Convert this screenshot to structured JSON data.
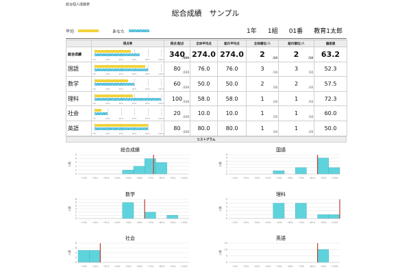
{
  "doc_label": "総合個人成績表",
  "title": "総合成績　サンプル",
  "legend": {
    "avg_label": "平均",
    "you_label": "あなた",
    "avg_color": "#f2d23a",
    "you_color": "#43b9d8"
  },
  "student": {
    "grade": "1年",
    "class": "1組",
    "number": "01番",
    "name": "教育1太郎"
  },
  "table": {
    "headers": [
      "",
      "得点率",
      "得点/配点",
      "全体平均点",
      "組の平均点",
      "全体順位/人",
      "組の順位/人",
      "偏差値"
    ],
    "ticks": [
      "0%",
      "20%",
      "40%",
      "60%",
      "80%",
      "100%"
    ],
    "rows": [
      {
        "subject": "総合成績",
        "avg_pct": 54.8,
        "you_pct": 68,
        "score": "340",
        "max": "/500",
        "all_avg": "274.0",
        "class_avg": "274.0",
        "rank": "2",
        "rank_of": "/10",
        "class_rank": "2",
        "class_rank_of": "/10",
        "dev": "63.2"
      },
      {
        "subject": "国語",
        "avg_pct": 76,
        "you_pct": 80,
        "score": "80",
        "max": "/100",
        "all_avg": "76.0",
        "class_avg": "76.0",
        "rank": "3",
        "rank_of": "/10",
        "class_rank": "3",
        "class_rank_of": "/10",
        "dev": "52.3"
      },
      {
        "subject": "数学",
        "avg_pct": 50,
        "you_pct": 60,
        "score": "60",
        "max": "/100",
        "all_avg": "50.0",
        "class_avg": "50.0",
        "rank": "2",
        "rank_of": "/10",
        "class_rank": "2",
        "class_rank_of": "/10",
        "dev": "57.5"
      },
      {
        "subject": "理科",
        "avg_pct": 58,
        "you_pct": 100,
        "score": "100",
        "max": "/100",
        "all_avg": "58.0",
        "class_avg": "58.0",
        "rank": "1",
        "rank_of": "/10",
        "class_rank": "1",
        "class_rank_of": "/10",
        "dev": "72.3"
      },
      {
        "subject": "社会",
        "avg_pct": 10,
        "you_pct": 20,
        "score": "20",
        "max": "/100",
        "all_avg": "10.0",
        "class_avg": "10.0",
        "rank": "1",
        "rank_of": "/10",
        "class_rank": "1",
        "class_rank_of": "/10",
        "dev": "60.0"
      },
      {
        "subject": "英語",
        "avg_pct": 80,
        "you_pct": 80,
        "score": "80",
        "max": "/100",
        "all_avg": "80.0",
        "class_avg": "80.0",
        "rank": "1",
        "rank_of": "/10",
        "class_rank": "1",
        "class_rank_of": "/10",
        "dev": "50.0"
      }
    ]
  },
  "histogram_header": "ヒストグラム",
  "chart_data": [
    {
      "type": "bar",
      "title": "総合成績",
      "ylabel": "人数",
      "categories": [
        "~10%",
        "~20%",
        "~30%",
        "~40%",
        "~50%",
        "~60%",
        "~70%",
        "~80%",
        "~90%",
        "~100%"
      ],
      "values": [
        0,
        0,
        0,
        0,
        1,
        2,
        4,
        3,
        0,
        0
      ],
      "ylim": [
        0,
        5
      ],
      "yticks": [
        0,
        1,
        2,
        3,
        4,
        5
      ],
      "marker_pct": 68,
      "bar_color": "#5fd3dc",
      "marker_color": "#c0392b"
    },
    {
      "type": "bar",
      "title": "国語",
      "ylabel": "人数",
      "categories": [
        "~10%",
        "~20%",
        "~30%",
        "~40%",
        "~50%",
        "~60%",
        "~70%",
        "~80%",
        "~90%",
        "~100%"
      ],
      "values": [
        0,
        0,
        0,
        0,
        1,
        0,
        2,
        0,
        5,
        2
      ],
      "ylim": [
        0,
        6
      ],
      "yticks": [
        0,
        1,
        2,
        3,
        4,
        5,
        6
      ],
      "marker_pct": 80,
      "bar_color": "#5fd3dc",
      "marker_color": "#c0392b"
    },
    {
      "type": "bar",
      "title": "数学",
      "ylabel": "人数",
      "categories": [
        "~10%",
        "~20%",
        "~30%",
        "~40%",
        "~50%",
        "~60%",
        "~70%",
        "~80%",
        "~90%",
        "~100%"
      ],
      "values": [
        0,
        0,
        0,
        0,
        5,
        0,
        2,
        0,
        1,
        0
      ],
      "ylim": [
        0,
        6
      ],
      "yticks": [
        0,
        1,
        2,
        3,
        4,
        5,
        6
      ],
      "marker_pct": 60,
      "bar_color": "#5fd3dc",
      "marker_color": "#c0392b"
    },
    {
      "type": "bar",
      "title": "理科",
      "ylabel": "人数",
      "categories": [
        "~10%",
        "~20%",
        "~30%",
        "~40%",
        "~50%",
        "~60%",
        "~70%",
        "~80%",
        "~90%",
        "~100%"
      ],
      "values": [
        0,
        0,
        0,
        0,
        4,
        0,
        4,
        0,
        1,
        1
      ],
      "ylim": [
        0,
        5
      ],
      "yticks": [
        0,
        1,
        2,
        3,
        4,
        5
      ],
      "marker_pct": 100,
      "bar_color": "#5fd3dc",
      "marker_color": "#c0392b"
    },
    {
      "type": "bar",
      "title": "社会",
      "ylabel": "人数",
      "categories": [
        "~10%",
        "~20%",
        "~30%",
        "~40%",
        "~50%",
        "~60%",
        "~70%",
        "~80%",
        "~90%",
        "~100%"
      ],
      "values": [
        5,
        5,
        0,
        0,
        0,
        0,
        0,
        0,
        0,
        0
      ],
      "ylim": [
        0,
        8
      ],
      "yticks": [
        0,
        2,
        4,
        6,
        8
      ],
      "marker_pct": 20,
      "bar_color": "#5fd3dc",
      "marker_color": "#c0392b"
    },
    {
      "type": "bar",
      "title": "英語",
      "ylabel": "人数",
      "categories": [
        "~10%",
        "~20%",
        "~30%",
        "~40%",
        "~50%",
        "~60%",
        "~70%",
        "~80%",
        "~90%",
        "~100%"
      ],
      "values": [
        0,
        0,
        0,
        0,
        0,
        0,
        0,
        0,
        10,
        0
      ],
      "ylim": [
        0,
        15
      ],
      "yticks": [
        0,
        5,
        10,
        15
      ],
      "marker_pct": 80,
      "bar_color": "#5fd3dc",
      "marker_color": "#c0392b"
    }
  ]
}
